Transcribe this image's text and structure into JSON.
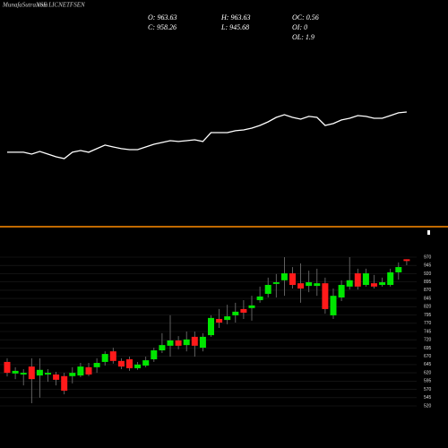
{
  "header": {
    "site": "MunafaSutra.com",
    "symbol": "NSE LICNETFSEN",
    "stats": [
      "O: 963.63",
      "H: 963.63",
      "OC: 0.56",
      "C: 958.26",
      "L: 945.68",
      "OI: 0",
      "OL: 1.9"
    ]
  },
  "chart_data": [
    {
      "type": "line",
      "color": "#ffffff",
      "ylim": [
        0,
        100
      ],
      "values": [
        43.8,
        43.8,
        43.8,
        42.5,
        44.4,
        42.5,
        40.6,
        39.4,
        43.8,
        45,
        43.8,
        46.3,
        48.8,
        47.5,
        46.3,
        45.6,
        45.6,
        47.5,
        49.4,
        50.6,
        51.9,
        51.3,
        51.9,
        52.5,
        51.3,
        57.5,
        57.5,
        57.5,
        58.8,
        59.4,
        60.6,
        62.5,
        65,
        68.1,
        70,
        68.1,
        66.9,
        68.8,
        68.1,
        62.5,
        63.8,
        66.3,
        67.5,
        69.4,
        68.8,
        67.5,
        67.5,
        69.4,
        71.3,
        71.9
      ]
    },
    {
      "type": "candlestick",
      "up_color": "#00e600",
      "down_color": "#ff1a1a",
      "grid": true,
      "ylim": [
        520,
        970
      ],
      "yticks": [
        970,
        945,
        920,
        895,
        870,
        845,
        820,
        795,
        770,
        745,
        720,
        695,
        670,
        645,
        620,
        595,
        570,
        545,
        520
      ],
      "open": [
        653,
        618,
        615,
        639,
        612,
        615,
        615,
        610,
        610,
        612,
        637,
        637,
        653,
        685,
        656,
        661,
        634,
        642,
        661,
        688,
        702,
        718,
        704,
        729,
        696,
        734,
        783,
        780,
        794,
        813,
        816,
        840,
        859,
        889,
        900,
        921,
        891,
        883,
        883,
        891,
        794,
        848,
        881,
        921,
        886,
        891,
        886,
        886,
        924,
        963.63
      ],
      "high": [
        664,
        637,
        631,
        664,
        664,
        631,
        623,
        620,
        637,
        650,
        650,
        664,
        685,
        696,
        664,
        669,
        653,
        669,
        696,
        740,
        794,
        731,
        745,
        745,
        740,
        794,
        813,
        826,
        832,
        840,
        853,
        881,
        908,
        919,
        970,
        940,
        951,
        929,
        935,
        908,
        875,
        900,
        970,
        935,
        935,
        916,
        908,
        935,
        954,
        963.63
      ],
      "low": [
        609,
        601,
        582,
        528,
        545,
        593,
        582,
        555,
        588,
        607,
        610,
        620,
        642,
        648,
        631,
        626,
        629,
        637,
        653,
        680,
        669,
        691,
        685,
        669,
        685,
        729,
        756,
        767,
        772,
        783,
        778,
        832,
        848,
        848,
        853,
        875,
        832,
        864,
        853,
        799,
        783,
        837,
        872,
        872,
        881,
        875,
        881,
        881,
        902,
        945.68
      ],
      "close": [
        620,
        626,
        620,
        601,
        629,
        620,
        599,
        566,
        620,
        639,
        615,
        650,
        677,
        656,
        639,
        634,
        645,
        658,
        688,
        704,
        718,
        702,
        721,
        702,
        729,
        786,
        772,
        791,
        805,
        802,
        824,
        851,
        886,
        894,
        921,
        886,
        875,
        894,
        891,
        813,
        853,
        886,
        900,
        881,
        921,
        881,
        894,
        924,
        940,
        958.26
      ]
    }
  ]
}
